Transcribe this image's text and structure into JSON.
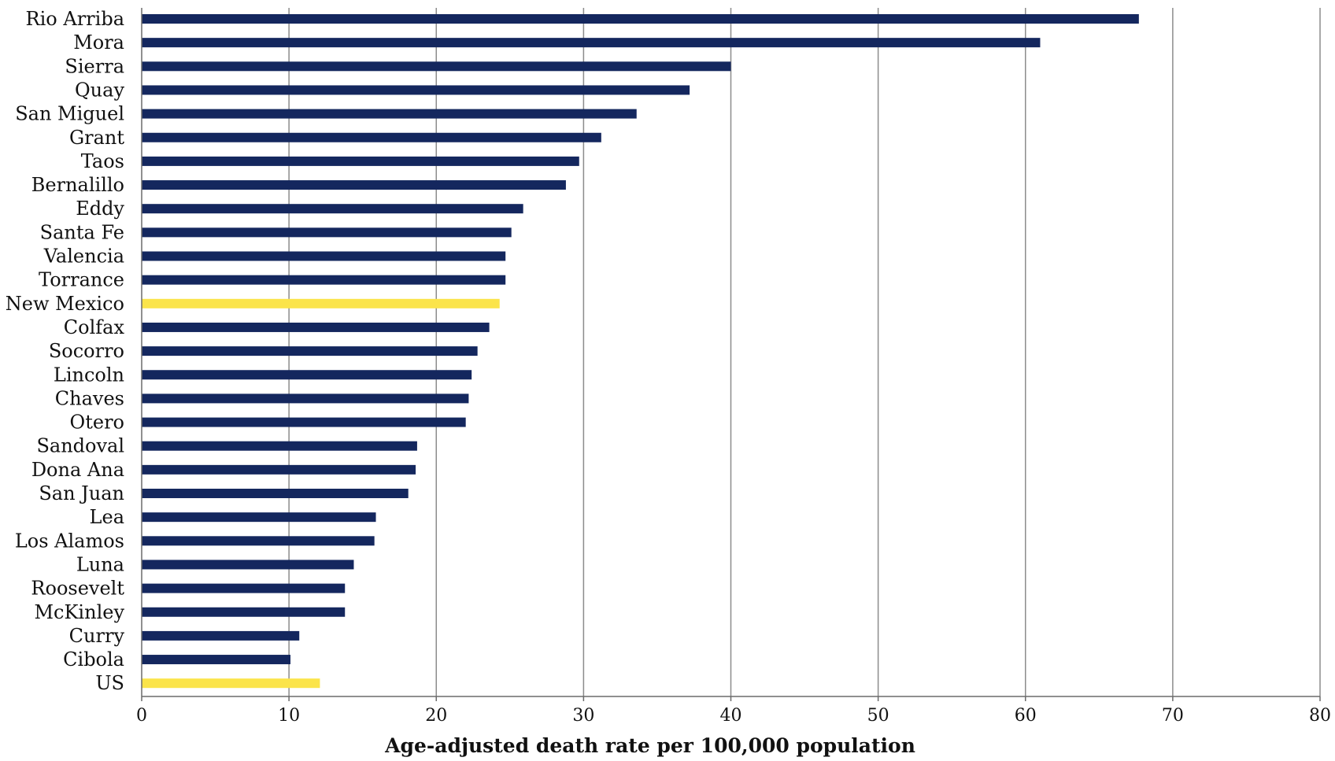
{
  "chart_data": {
    "type": "bar",
    "orientation": "horizontal",
    "categories": [
      "Rio Arriba",
      "Mora",
      "Sierra",
      "Quay",
      "San Miguel",
      "Grant",
      "Taos",
      "Bernalillo",
      "Eddy",
      "Santa Fe",
      "Valencia",
      "Torrance",
      "New Mexico",
      "Colfax",
      "Socorro",
      "Lincoln",
      "Chaves",
      "Otero",
      "Sandoval",
      "Dona Ana",
      "San Juan",
      "Lea",
      "Los Alamos",
      "Luna",
      "Roosevelt",
      "McKinley",
      "Curry",
      "Cibola",
      "US"
    ],
    "values": [
      67.7,
      61.0,
      40.0,
      37.2,
      33.6,
      31.2,
      29.7,
      28.8,
      25.9,
      25.1,
      24.7,
      24.7,
      24.3,
      23.6,
      22.8,
      22.4,
      22.2,
      22.0,
      18.7,
      18.6,
      18.1,
      15.9,
      15.8,
      14.4,
      13.8,
      13.8,
      10.7,
      10.1,
      12.1
    ],
    "highlighted_categories": [
      "New Mexico",
      "US"
    ],
    "xlabel": "Age-adjusted death rate per 100,000 population",
    "ylabel": "",
    "title": "",
    "xlim": [
      0,
      80
    ],
    "xticks": [
      0,
      10,
      20,
      30,
      40,
      50,
      60,
      70,
      80
    ],
    "grid": "vertical",
    "colors": {
      "bar": "#14275e",
      "highlight": "#fbe44a",
      "grid": "#8c8c8c",
      "axis": "#6b6b6b"
    }
  }
}
